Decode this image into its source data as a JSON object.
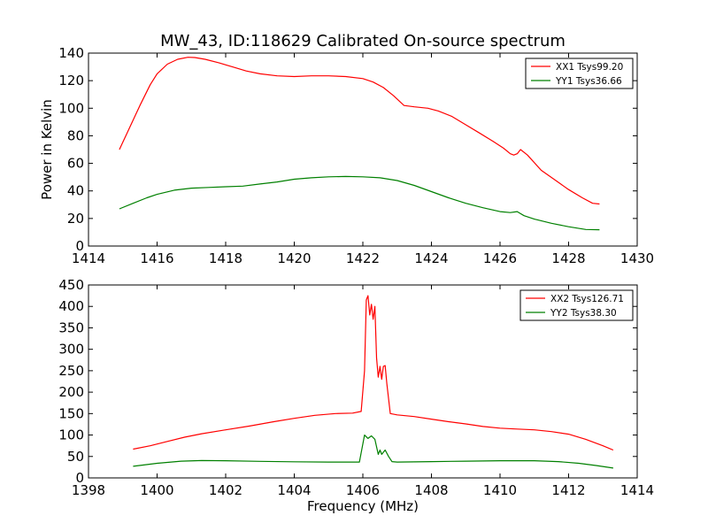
{
  "title": "MW_43, ID:118629 Calibrated On-source spectrum",
  "chart_data": [
    {
      "type": "line",
      "title": "MW_43, ID:118629 Calibrated On-source spectrum",
      "xlabel": "",
      "ylabel": "Power in Kelvin",
      "xlim": [
        1414,
        1430
      ],
      "ylim": [
        0,
        140
      ],
      "xticks": [
        "1414",
        "1416",
        "1418",
        "1420",
        "1422",
        "1424",
        "1426",
        "1428",
        "1430"
      ],
      "yticks": [
        "0",
        "20",
        "40",
        "60",
        "80",
        "100",
        "120",
        "140"
      ],
      "legend_position": "top-right",
      "grid": false,
      "series": [
        {
          "name": "XX1 Tsys99.20",
          "color": "#ff0000",
          "x": [
            1414.9,
            1415.2,
            1415.5,
            1415.8,
            1416.0,
            1416.3,
            1416.6,
            1416.9,
            1417.1,
            1417.4,
            1417.8,
            1418.2,
            1418.6,
            1419.0,
            1419.5,
            1420.0,
            1420.5,
            1421.0,
            1421.5,
            1422.0,
            1422.3,
            1422.6,
            1422.9,
            1423.2,
            1423.5,
            1423.9,
            1424.2,
            1424.6,
            1425.0,
            1425.4,
            1425.8,
            1426.1,
            1426.3,
            1426.4,
            1426.5,
            1426.6,
            1426.8,
            1427.2,
            1427.6,
            1428.0,
            1428.4,
            1428.7,
            1428.9
          ],
          "values": [
            70,
            86,
            102,
            117,
            125,
            132,
            135.5,
            137,
            136.8,
            135.5,
            133,
            130,
            127,
            125,
            123.5,
            123,
            123.5,
            123.5,
            123,
            121.5,
            119,
            115,
            109,
            102,
            101,
            100,
            98,
            94,
            88,
            82,
            76,
            71,
            67,
            66,
            67,
            70,
            66,
            55,
            48,
            41,
            35,
            31,
            30.5
          ]
        },
        {
          "name": "YY1 Tsys36.66",
          "color": "#008000",
          "x": [
            1414.9,
            1415.3,
            1415.7,
            1416.0,
            1416.5,
            1417.0,
            1417.5,
            1418.0,
            1418.5,
            1419.0,
            1419.5,
            1420.0,
            1420.5,
            1421.0,
            1421.5,
            1422.0,
            1422.5,
            1423.0,
            1423.5,
            1424.0,
            1424.5,
            1425.0,
            1425.5,
            1426.0,
            1426.3,
            1426.5,
            1426.7,
            1427.0,
            1427.5,
            1428.0,
            1428.5,
            1428.9
          ],
          "values": [
            27,
            31,
            35,
            37.5,
            40.5,
            42,
            42.5,
            43,
            43.5,
            45,
            46.5,
            48.5,
            49.5,
            50.2,
            50.5,
            50.2,
            49.5,
            47.5,
            44,
            39.5,
            35,
            31,
            27.8,
            25,
            24.3,
            25,
            22,
            19.5,
            16.5,
            14,
            12,
            11.8
          ]
        }
      ]
    },
    {
      "type": "line",
      "title": "",
      "xlabel": "Frequency (MHz)",
      "ylabel": "",
      "xlim": [
        1398,
        1414
      ],
      "ylim": [
        0,
        450
      ],
      "xticks": [
        "1398",
        "1400",
        "1402",
        "1404",
        "1406",
        "1408",
        "1410",
        "1412",
        "1414"
      ],
      "yticks": [
        "0",
        "50",
        "100",
        "150",
        "200",
        "250",
        "300",
        "350",
        "400",
        "450"
      ],
      "legend_position": "top-right",
      "grid": false,
      "series": [
        {
          "name": "XX2 Tsys126.71",
          "color": "#ff0000",
          "x": [
            1399.3,
            1399.8,
            1400.3,
            1400.8,
            1401.3,
            1402.0,
            1402.7,
            1403.4,
            1404.0,
            1404.6,
            1405.2,
            1405.7,
            1405.95,
            1406.05,
            1406.1,
            1406.15,
            1406.2,
            1406.25,
            1406.3,
            1406.35,
            1406.4,
            1406.45,
            1406.5,
            1406.55,
            1406.6,
            1406.65,
            1406.7,
            1406.8,
            1407.0,
            1407.5,
            1408.0,
            1408.5,
            1409.0,
            1409.5,
            1410.0,
            1410.5,
            1411.0,
            1411.5,
            1412.0,
            1412.5,
            1413.0,
            1413.3
          ],
          "values": [
            67,
            75,
            85,
            95,
            103,
            112,
            121,
            131,
            139,
            146,
            150,
            151,
            155,
            250,
            415,
            425,
            380,
            405,
            370,
            400,
            280,
            235,
            260,
            230,
            260,
            262,
            220,
            150,
            147,
            143,
            137,
            131,
            126,
            120,
            116,
            114,
            112,
            108,
            102,
            90,
            75,
            65
          ]
        },
        {
          "name": "YY2 Tsys38.30",
          "color": "#008000",
          "x": [
            1399.3,
            1400.0,
            1400.7,
            1401.3,
            1402.0,
            1403.0,
            1404.0,
            1405.0,
            1405.9,
            1406.05,
            1406.15,
            1406.25,
            1406.35,
            1406.45,
            1406.5,
            1406.55,
            1406.65,
            1406.75,
            1406.85,
            1407.0,
            1408.0,
            1409.0,
            1410.0,
            1411.0,
            1411.7,
            1412.3,
            1412.8,
            1413.3
          ],
          "values": [
            27,
            34,
            39,
            40.5,
            40,
            38.5,
            37.5,
            37,
            37,
            100,
            92,
            98,
            90,
            55,
            65,
            55,
            65,
            50,
            38,
            37,
            38,
            39,
            40,
            40,
            38,
            34,
            29,
            23
          ]
        }
      ]
    }
  ]
}
